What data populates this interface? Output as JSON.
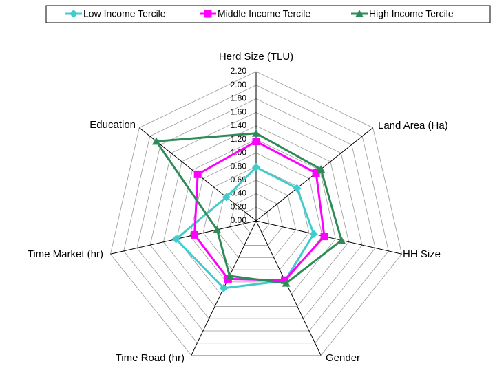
{
  "chart_data": {
    "type": "radar",
    "categories": [
      "Herd Size (TLU)",
      "Land Area (Ha)",
      "HH Size",
      "Gender",
      "Time Road (hr)",
      "Time Market (hr)",
      "Education"
    ],
    "series": [
      {
        "name": "Low Income Tercile",
        "color": "#40cccc",
        "marker": "diamond",
        "values": [
          0.79,
          0.77,
          0.87,
          0.98,
          1.1,
          1.21,
          0.56
        ]
      },
      {
        "name": "Middle Income Tercile",
        "color": "#ff00ff",
        "marker": "square",
        "values": [
          1.17,
          1.13,
          1.03,
          0.97,
          0.95,
          0.93,
          1.1
        ]
      },
      {
        "name": "High Income Tercile",
        "color": "#2e8b57",
        "marker": "triangle",
        "values": [
          1.29,
          1.22,
          1.29,
          1.02,
          0.9,
          0.59,
          1.88
        ]
      }
    ],
    "ylim": [
      0,
      2.2
    ],
    "yticks": [
      {
        "value": 0,
        "label": "0.00"
      },
      {
        "value": 0.2,
        "label": "0.20"
      },
      {
        "value": 0.4,
        "label": "0.40"
      },
      {
        "value": 0.6,
        "label": "0.60"
      },
      {
        "value": 0.8,
        "label": "0.80"
      },
      {
        "value": 1.0,
        "label": "1.00"
      },
      {
        "value": 1.2,
        "label": "1.20"
      },
      {
        "value": 1.4,
        "label": "1.40"
      },
      {
        "value": 1.6,
        "label": "1.60"
      },
      {
        "value": 1.8,
        "label": "1.80"
      },
      {
        "value": 2.0,
        "label": "2.00"
      },
      {
        "value": 2.2,
        "label": "2.20"
      }
    ],
    "grid": true,
    "legend": "top"
  }
}
